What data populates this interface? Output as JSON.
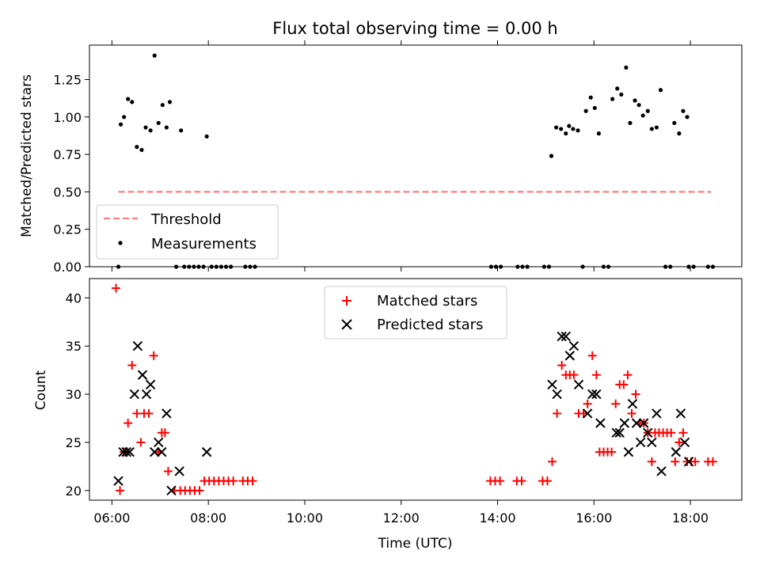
{
  "chart_data": [
    {
      "type": "scatter",
      "title": "Flux total observing time = 0.00 h",
      "xlabel": "",
      "ylabel": "Matched/Predicted stars",
      "xlim": [
        "05:32",
        "19:04"
      ],
      "ylim": [
        0,
        1.48
      ],
      "x_ticks": [
        "06:00",
        "08:00",
        "10:00",
        "12:00",
        "14:00",
        "16:00",
        "18:00"
      ],
      "y_ticks": [
        "0.00",
        "0.25",
        "0.50",
        "0.75",
        "1.00",
        "1.25"
      ],
      "legend_position": "lower-left",
      "threshold": {
        "name": "Threshold",
        "y": 0.5,
        "x_range": [
          "06:08",
          "18:26"
        ],
        "color": "#ff7f7f",
        "style": "dashed"
      },
      "series": [
        {
          "name": "Measurements",
          "color": "#000000",
          "marker": "dot",
          "points": [
            [
              "06:08",
              0.0
            ],
            [
              "06:11",
              0.95
            ],
            [
              "06:15",
              1.0
            ],
            [
              "06:20",
              1.12
            ],
            [
              "06:25",
              1.1
            ],
            [
              "06:31",
              0.8
            ],
            [
              "06:37",
              0.78
            ],
            [
              "06:42",
              0.93
            ],
            [
              "06:48",
              0.91
            ],
            [
              "06:53",
              1.41
            ],
            [
              "06:58",
              0.96
            ],
            [
              "07:03",
              1.08
            ],
            [
              "07:08",
              0.93
            ],
            [
              "07:12",
              1.1
            ],
            [
              "07:20",
              0.0
            ],
            [
              "07:26",
              0.91
            ],
            [
              "07:30",
              0.0
            ],
            [
              "07:36",
              0.0
            ],
            [
              "07:42",
              0.0
            ],
            [
              "07:48",
              0.0
            ],
            [
              "07:54",
              0.0
            ],
            [
              "07:58",
              0.87
            ],
            [
              "08:04",
              0.0
            ],
            [
              "08:10",
              0.0
            ],
            [
              "08:16",
              0.0
            ],
            [
              "08:22",
              0.0
            ],
            [
              "08:28",
              0.0
            ],
            [
              "08:46",
              0.0
            ],
            [
              "08:52",
              0.0
            ],
            [
              "08:58",
              0.0
            ],
            [
              "13:52",
              0.0
            ],
            [
              "13:58",
              0.0
            ],
            [
              "14:04",
              0.0
            ],
            [
              "14:25",
              0.0
            ],
            [
              "14:31",
              0.0
            ],
            [
              "14:37",
              0.0
            ],
            [
              "14:58",
              0.0
            ],
            [
              "15:04",
              0.0
            ],
            [
              "15:07",
              0.74
            ],
            [
              "15:13",
              0.93
            ],
            [
              "15:19",
              0.92
            ],
            [
              "15:25",
              0.89
            ],
            [
              "15:29",
              0.94
            ],
            [
              "15:34",
              0.92
            ],
            [
              "15:40",
              0.91
            ],
            [
              "15:46",
              0.0
            ],
            [
              "15:50",
              1.04
            ],
            [
              "15:56",
              1.13
            ],
            [
              "16:01",
              1.06
            ],
            [
              "16:06",
              0.89
            ],
            [
              "16:12",
              0.0
            ],
            [
              "16:18",
              0.0
            ],
            [
              "16:23",
              1.12
            ],
            [
              "16:29",
              1.19
            ],
            [
              "16:34",
              1.15
            ],
            [
              "16:40",
              1.33
            ],
            [
              "16:45",
              0.96
            ],
            [
              "16:51",
              1.11
            ],
            [
              "16:56",
              1.08
            ],
            [
              "17:01",
              1.01
            ],
            [
              "17:07",
              1.04
            ],
            [
              "17:12",
              0.92
            ],
            [
              "17:18",
              0.93
            ],
            [
              "17:23",
              1.18
            ],
            [
              "17:29",
              0.0
            ],
            [
              "17:35",
              0.0
            ],
            [
              "17:40",
              0.96
            ],
            [
              "17:46",
              0.89
            ],
            [
              "17:51",
              1.04
            ],
            [
              "17:56",
              1.0
            ],
            [
              "17:58",
              0.0
            ],
            [
              "18:04",
              0.0
            ],
            [
              "18:22",
              0.0
            ],
            [
              "18:28",
              0.0
            ]
          ]
        }
      ]
    },
    {
      "type": "scatter",
      "title": "",
      "xlabel": "Time (UTC)",
      "ylabel": "Count",
      "xlim": [
        "05:32",
        "19:04"
      ],
      "ylim": [
        19,
        42
      ],
      "x_ticks": [
        "06:00",
        "08:00",
        "10:00",
        "12:00",
        "14:00",
        "16:00",
        "18:00"
      ],
      "y_ticks": [
        "20",
        "25",
        "30",
        "35",
        "40"
      ],
      "legend_position": "upper-center",
      "series": [
        {
          "name": "Matched stars",
          "color": "#ff0000",
          "marker": "plus",
          "points": [
            [
              "06:05",
              41
            ],
            [
              "06:10",
              20
            ],
            [
              "06:15",
              24
            ],
            [
              "06:20",
              27
            ],
            [
              "06:25",
              33
            ],
            [
              "06:31",
              28
            ],
            [
              "06:36",
              25
            ],
            [
              "06:40",
              28
            ],
            [
              "06:46",
              28
            ],
            [
              "06:52",
              34
            ],
            [
              "06:58",
              24
            ],
            [
              "07:02",
              26
            ],
            [
              "07:06",
              26
            ],
            [
              "07:10",
              22
            ],
            [
              "07:18",
              20
            ],
            [
              "07:25",
              20
            ],
            [
              "07:31",
              20
            ],
            [
              "07:37",
              20
            ],
            [
              "07:43",
              20
            ],
            [
              "07:49",
              20
            ],
            [
              "07:55",
              21
            ],
            [
              "08:01",
              21
            ],
            [
              "08:07",
              21
            ],
            [
              "08:13",
              21
            ],
            [
              "08:19",
              21
            ],
            [
              "08:25",
              21
            ],
            [
              "08:31",
              21
            ],
            [
              "08:43",
              21
            ],
            [
              "08:49",
              21
            ],
            [
              "08:55",
              21
            ],
            [
              "13:51",
              21
            ],
            [
              "13:57",
              21
            ],
            [
              "14:03",
              21
            ],
            [
              "14:24",
              21
            ],
            [
              "14:30",
              21
            ],
            [
              "14:56",
              21
            ],
            [
              "15:02",
              21
            ],
            [
              "15:08",
              23
            ],
            [
              "15:14",
              28
            ],
            [
              "15:20",
              33
            ],
            [
              "15:25",
              32
            ],
            [
              "15:30",
              32
            ],
            [
              "15:35",
              32
            ],
            [
              "15:41",
              28
            ],
            [
              "15:47",
              28
            ],
            [
              "15:52",
              29
            ],
            [
              "15:58",
              34
            ],
            [
              "16:03",
              32
            ],
            [
              "16:07",
              24
            ],
            [
              "16:12",
              24
            ],
            [
              "16:17",
              24
            ],
            [
              "16:22",
              24
            ],
            [
              "16:27",
              29
            ],
            [
              "16:32",
              31
            ],
            [
              "16:37",
              31
            ],
            [
              "16:42",
              32
            ],
            [
              "16:47",
              28
            ],
            [
              "16:52",
              30
            ],
            [
              "16:57",
              27
            ],
            [
              "17:02",
              27
            ],
            [
              "17:07",
              26
            ],
            [
              "17:12",
              23
            ],
            [
              "17:16",
              26
            ],
            [
              "17:21",
              26
            ],
            [
              "17:26",
              26
            ],
            [
              "17:31",
              26
            ],
            [
              "17:36",
              26
            ],
            [
              "17:41",
              23
            ],
            [
              "17:46",
              25
            ],
            [
              "17:51",
              26
            ],
            [
              "17:56",
              23
            ],
            [
              "18:01",
              23
            ],
            [
              "18:06",
              23
            ],
            [
              "18:22",
              23
            ],
            [
              "18:28",
              23
            ]
          ]
        },
        {
          "name": "Predicted stars",
          "color": "#000000",
          "marker": "x",
          "points": [
            [
              "06:08",
              21
            ],
            [
              "06:14",
              24
            ],
            [
              "06:18",
              24
            ],
            [
              "06:22",
              24
            ],
            [
              "06:28",
              30
            ],
            [
              "06:32",
              35
            ],
            [
              "06:38",
              32
            ],
            [
              "06:43",
              30
            ],
            [
              "06:48",
              31
            ],
            [
              "06:53",
              24
            ],
            [
              "06:58",
              25
            ],
            [
              "07:02",
              24
            ],
            [
              "07:08",
              28
            ],
            [
              "07:14",
              20
            ],
            [
              "07:24",
              22
            ],
            [
              "07:58",
              24
            ],
            [
              "15:08",
              31
            ],
            [
              "15:14",
              30
            ],
            [
              "15:20",
              36
            ],
            [
              "15:25",
              36
            ],
            [
              "15:30",
              34
            ],
            [
              "15:35",
              35
            ],
            [
              "15:41",
              31
            ],
            [
              "15:52",
              28
            ],
            [
              "15:58",
              30
            ],
            [
              "16:03",
              30
            ],
            [
              "16:08",
              27
            ],
            [
              "16:28",
              26
            ],
            [
              "16:32",
              26
            ],
            [
              "16:38",
              27
            ],
            [
              "16:43",
              24
            ],
            [
              "16:48",
              29
            ],
            [
              "16:53",
              27
            ],
            [
              "16:58",
              25
            ],
            [
              "17:02",
              27
            ],
            [
              "17:07",
              26
            ],
            [
              "17:12",
              25
            ],
            [
              "17:18",
              28
            ],
            [
              "17:24",
              22
            ],
            [
              "17:42",
              24
            ],
            [
              "17:48",
              28
            ],
            [
              "17:53",
              25
            ],
            [
              "17:58",
              23
            ]
          ]
        }
      ]
    }
  ]
}
